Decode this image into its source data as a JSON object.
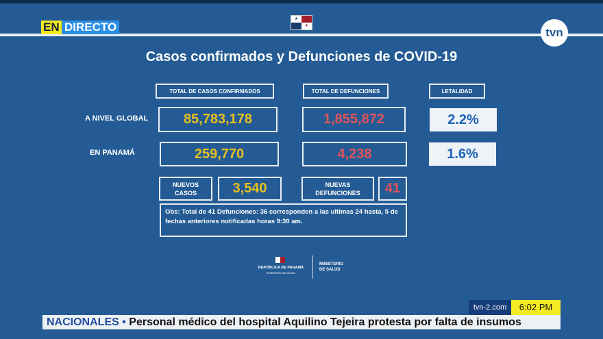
{
  "live": {
    "en": "EN",
    "directo": "DIRECTO"
  },
  "channel_logo": "tvn",
  "title": "Casos confirmados y Defunciones de COVID-19",
  "headers": {
    "cases": "TOTAL DE CASOS CONFIRMADOS",
    "deaths": "TOTAL DE DEFUNCIONES",
    "lethality": "LETALIDAD"
  },
  "global": {
    "label": "A NIVEL GLOBAL",
    "cases": "85,783,178",
    "deaths": "1,855,872",
    "lethality": "2.2%"
  },
  "panama": {
    "label": "EN PANAMÁ",
    "cases": "259,770",
    "deaths": "4,238",
    "lethality": "1.6%"
  },
  "new": {
    "cases_label_1": "NUEVOS",
    "cases_label_2": "CASOS",
    "cases": "3,540",
    "deaths_label_1": "NUEVAS",
    "deaths_label_2": "DEFUNCIONES",
    "deaths": "41"
  },
  "obs": "Obs: Total de 41 Defunciones: 36 corresponden a las ultimas 24  hasta, 5 de fechas anteriores notificadas horas 9:30 am.",
  "footer_logo": {
    "republic": "REPÚBLICA DE PANAMÁ",
    "gov": "GOBIERNO NACIONAL",
    "ministry_1": "MINISTERIO",
    "ministry_2": "DE SALUD"
  },
  "ticker": {
    "site": "tvn-2.com",
    "time": "6:02 PM",
    "category": "NACIONALES",
    "bullet": "•",
    "headline": "Personal médico del hospital Aquilino Tejeira protesta por falta de insumos"
  },
  "colors": {
    "background": "#245b94",
    "cases": "#e9c01e",
    "deaths": "#e0545b",
    "lethality": "#1e63b8"
  }
}
